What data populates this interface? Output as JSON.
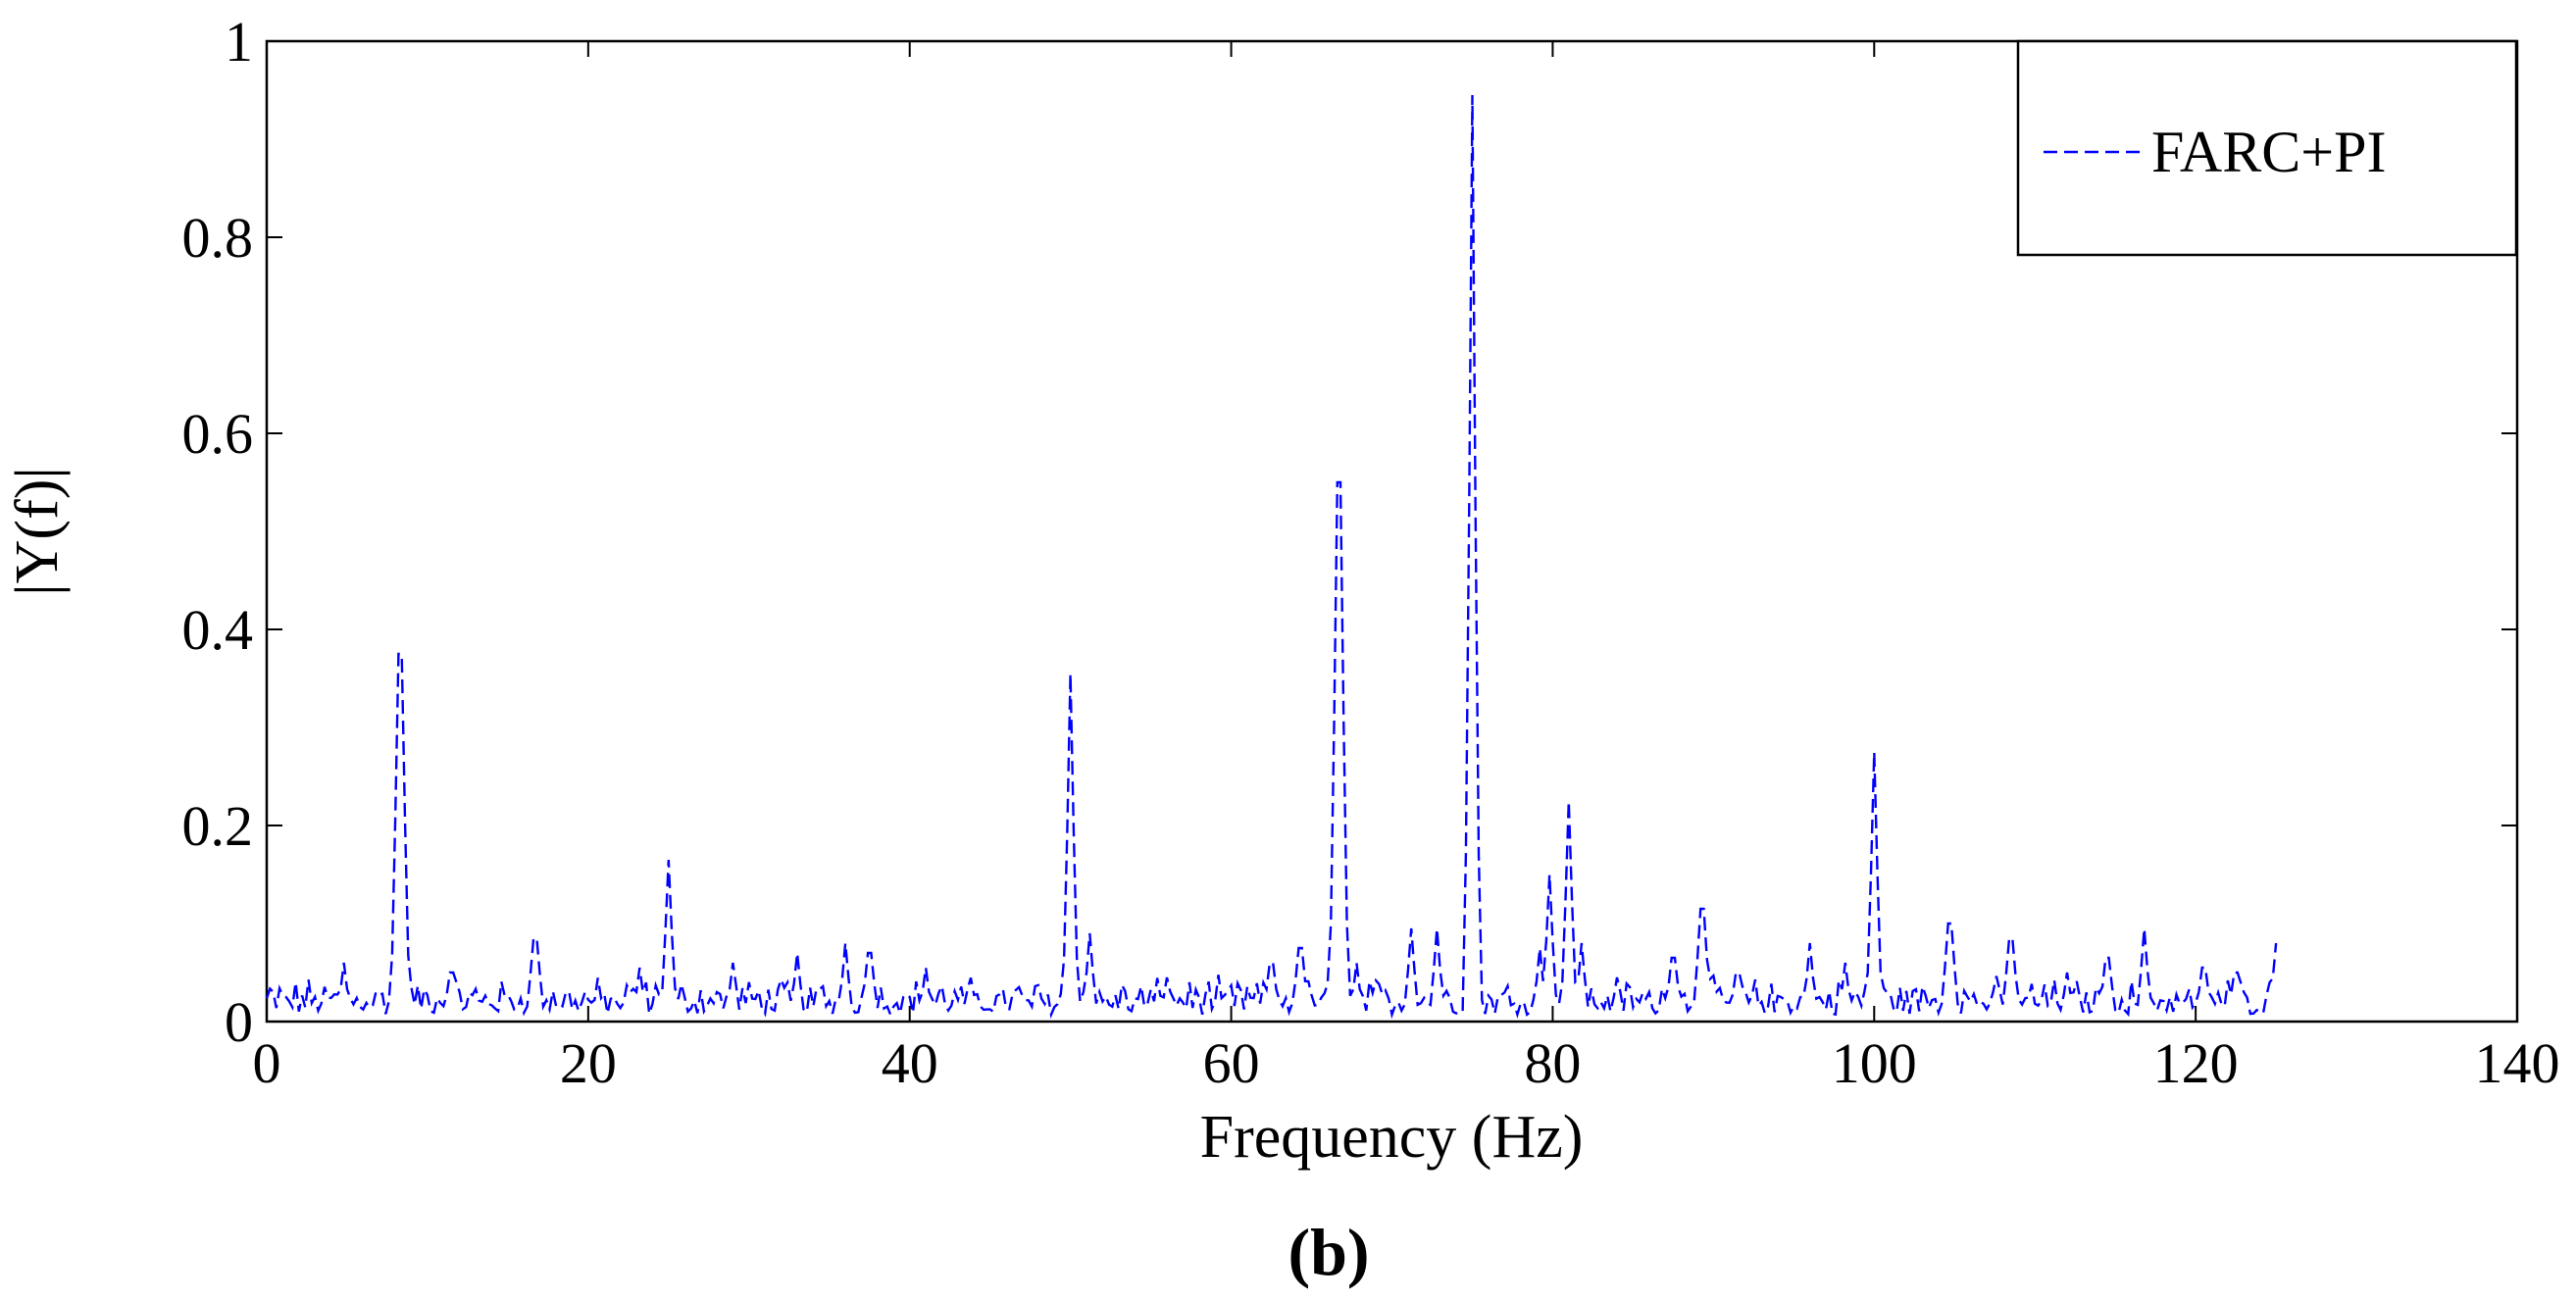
{
  "chart_data": {
    "type": "line",
    "title": "",
    "xlabel": "Frequency (Hz)",
    "ylabel": "|Y(f)|",
    "panel_label": "(b)",
    "xlim": [
      0,
      140
    ],
    "ylim": [
      0,
      1
    ],
    "xticks": [
      0,
      20,
      40,
      60,
      80,
      100,
      120,
      140
    ],
    "yticks": [
      0,
      0.2,
      0.4,
      0.6,
      0.8,
      1
    ],
    "ytick_labels": [
      "0",
      "0.2",
      "0.4",
      "0.6",
      "0.8",
      "1"
    ],
    "grid": false,
    "legend_position": "top-right",
    "series": [
      {
        "name": "FARC+PI",
        "color": "#0000ff",
        "line_style": "dashed",
        "x_start": 0,
        "x_end": 125,
        "noise_floor": 0.028,
        "noise_amplitude": 0.03,
        "peaks": [
          {
            "x": 4.8,
            "y": 0.06
          },
          {
            "x": 8.3,
            "y": 0.375
          },
          {
            "x": 11.5,
            "y": 0.05
          },
          {
            "x": 16.7,
            "y": 0.085
          },
          {
            "x": 23.2,
            "y": 0.055
          },
          {
            "x": 25.0,
            "y": 0.165
          },
          {
            "x": 29.0,
            "y": 0.06
          },
          {
            "x": 33.0,
            "y": 0.07
          },
          {
            "x": 36.0,
            "y": 0.08
          },
          {
            "x": 37.5,
            "y": 0.07
          },
          {
            "x": 41.0,
            "y": 0.055
          },
          {
            "x": 50.0,
            "y": 0.355
          },
          {
            "x": 51.2,
            "y": 0.09
          },
          {
            "x": 56.0,
            "y": 0.045
          },
          {
            "x": 62.5,
            "y": 0.06
          },
          {
            "x": 64.3,
            "y": 0.075
          },
          {
            "x": 66.7,
            "y": 0.55
          },
          {
            "x": 67.8,
            "y": 0.06
          },
          {
            "x": 71.2,
            "y": 0.095
          },
          {
            "x": 72.8,
            "y": 0.095
          },
          {
            "x": 75.0,
            "y": 0.945
          },
          {
            "x": 79.2,
            "y": 0.075
          },
          {
            "x": 79.8,
            "y": 0.15
          },
          {
            "x": 81.0,
            "y": 0.225
          },
          {
            "x": 81.8,
            "y": 0.08
          },
          {
            "x": 84.0,
            "y": 0.045
          },
          {
            "x": 87.5,
            "y": 0.065
          },
          {
            "x": 89.3,
            "y": 0.115
          },
          {
            "x": 91.5,
            "y": 0.05
          },
          {
            "x": 96.0,
            "y": 0.08
          },
          {
            "x": 98.2,
            "y": 0.06
          },
          {
            "x": 100.0,
            "y": 0.275
          },
          {
            "x": 104.7,
            "y": 0.1
          },
          {
            "x": 108.5,
            "y": 0.085
          },
          {
            "x": 112.0,
            "y": 0.05
          },
          {
            "x": 114.5,
            "y": 0.065
          },
          {
            "x": 116.8,
            "y": 0.095
          },
          {
            "x": 120.5,
            "y": 0.055
          },
          {
            "x": 122.5,
            "y": 0.05
          },
          {
            "x": 125.0,
            "y": 0.08
          }
        ]
      }
    ]
  }
}
